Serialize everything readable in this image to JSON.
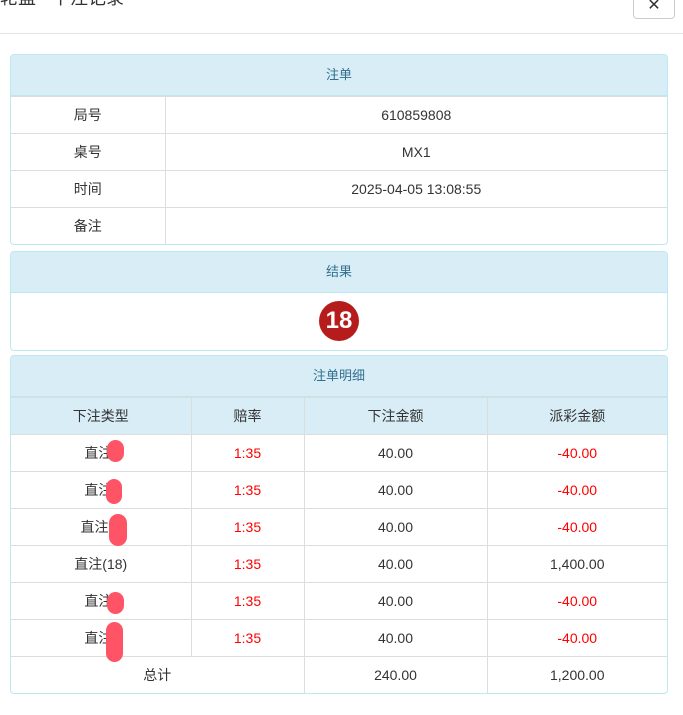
{
  "modal": {
    "title": "轮盘 - 下注记录",
    "close_icon": "times-icon"
  },
  "order": {
    "header": "注单",
    "rows": [
      {
        "label": "局号",
        "value": "610859808"
      },
      {
        "label": "桌号",
        "value": "MX1"
      },
      {
        "label": "时间",
        "value": "2025-04-05 13:08:55"
      },
      {
        "label": "备注",
        "value": ""
      }
    ]
  },
  "result": {
    "header": "结果",
    "number": "18",
    "ball_color": "#b71c1c"
  },
  "details": {
    "header": "注单明细",
    "columns": [
      "下注类型",
      "赔率",
      "下注金额",
      "派彩金额"
    ],
    "rows": [
      {
        "type": "直注(",
        "odds": "1:35",
        "amount": "40.00",
        "payout": "-40.00"
      },
      {
        "type": "直注(",
        "odds": "1:35",
        "amount": "40.00",
        "payout": "-40.00"
      },
      {
        "type": "直注(1",
        "odds": "1:35",
        "amount": "40.00",
        "payout": "-40.00"
      },
      {
        "type": "直注(18)",
        "odds": "1:35",
        "amount": "40.00",
        "payout": "1,400.00"
      },
      {
        "type": "直注(",
        "odds": "1:35",
        "amount": "40.00",
        "payout": "-40.00"
      },
      {
        "type": "直注(",
        "odds": "1:35",
        "amount": "40.00",
        "payout": "-40.00"
      }
    ],
    "total": {
      "label": "总计",
      "amount": "240.00",
      "payout": "1,200.00"
    }
  }
}
